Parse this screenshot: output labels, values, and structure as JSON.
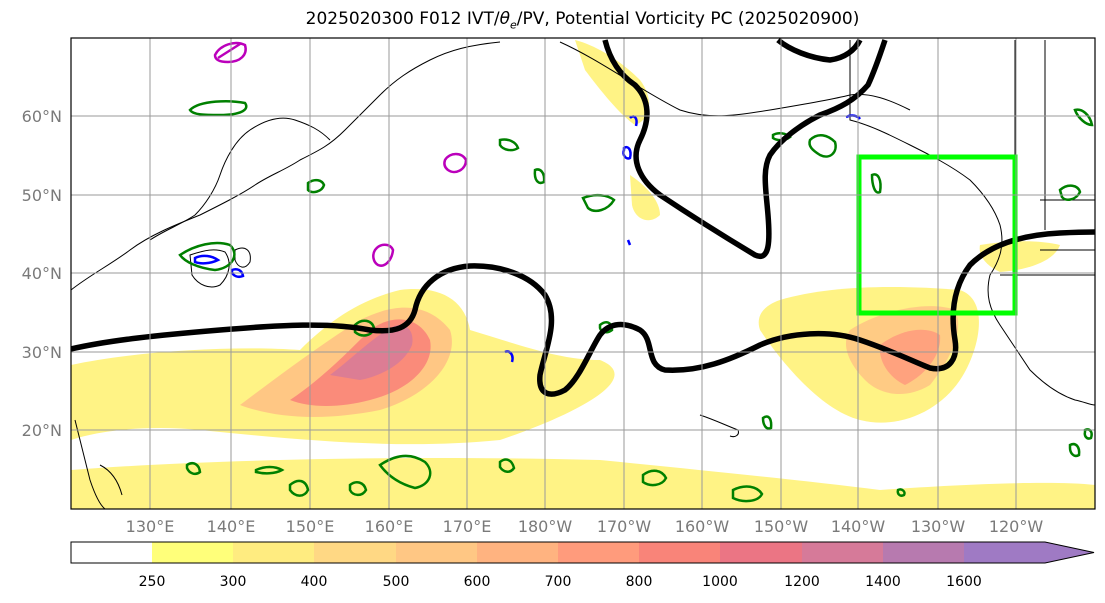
{
  "title": {
    "prefix": "2025020300 F012 IVT/",
    "theta_symbol": "θ",
    "theta_sub": "e",
    "suffix": "/PV, Potential Vorticity PC (2025020900)"
  },
  "lat_labels": [
    "60°N",
    "50°N",
    "40°N",
    "30°N",
    "20°N"
  ],
  "lon_labels": [
    "130°E",
    "140°E",
    "150°E",
    "160°E",
    "170°E",
    "180°W",
    "170°W",
    "160°W",
    "150°W",
    "140°W",
    "130°W",
    "120°W"
  ],
  "colorbar": {
    "ticks": [
      "250",
      "300",
      "400",
      "500",
      "600",
      "700",
      "800",
      "1000",
      "1200",
      "1400",
      "1600"
    ],
    "colors": [
      "#ffffff",
      "#ffff7a",
      "#ffec80",
      "#ffd884",
      "#ffc784",
      "#ffb380",
      "#ff9b7c",
      "#f98479",
      "#eb7584",
      "#d67a99",
      "#b77aaf",
      "#9f7ac4"
    ]
  },
  "colors": {
    "pv_contour": "#000000",
    "highlight_box": "#00ff00",
    "theta_e_contours": "#008000",
    "blue_contours": "#0000ff",
    "magenta_contours": "#bb00bb"
  }
}
